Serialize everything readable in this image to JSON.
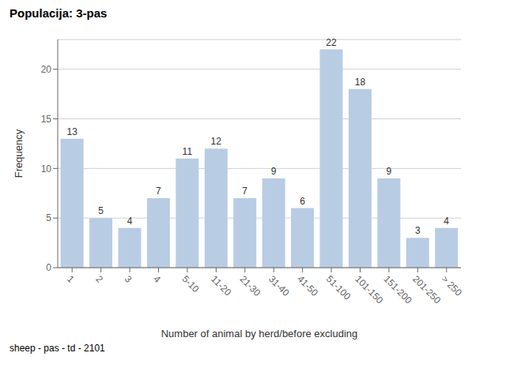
{
  "chart_data": {
    "type": "bar",
    "title": "Populacija: 3-pas",
    "footer": "sheep - pas - td - 2101",
    "xlabel": "Number of animal by herd/before excluding",
    "ylabel": "Frequency",
    "categories": [
      "1",
      "2",
      "3",
      "4",
      "5-10",
      "11-20",
      "21-30",
      "31-40",
      "41-50",
      "51-100",
      "101-150",
      "151-200",
      "201-250",
      "> 250"
    ],
    "values": [
      13,
      5,
      4,
      7,
      11,
      12,
      7,
      9,
      6,
      22,
      18,
      9,
      3,
      4
    ],
    "color": "#b8cce4",
    "ylim": [
      0,
      23
    ],
    "yticks": [
      0,
      5,
      10,
      15,
      20
    ],
    "grid": true,
    "data_labels": true
  }
}
